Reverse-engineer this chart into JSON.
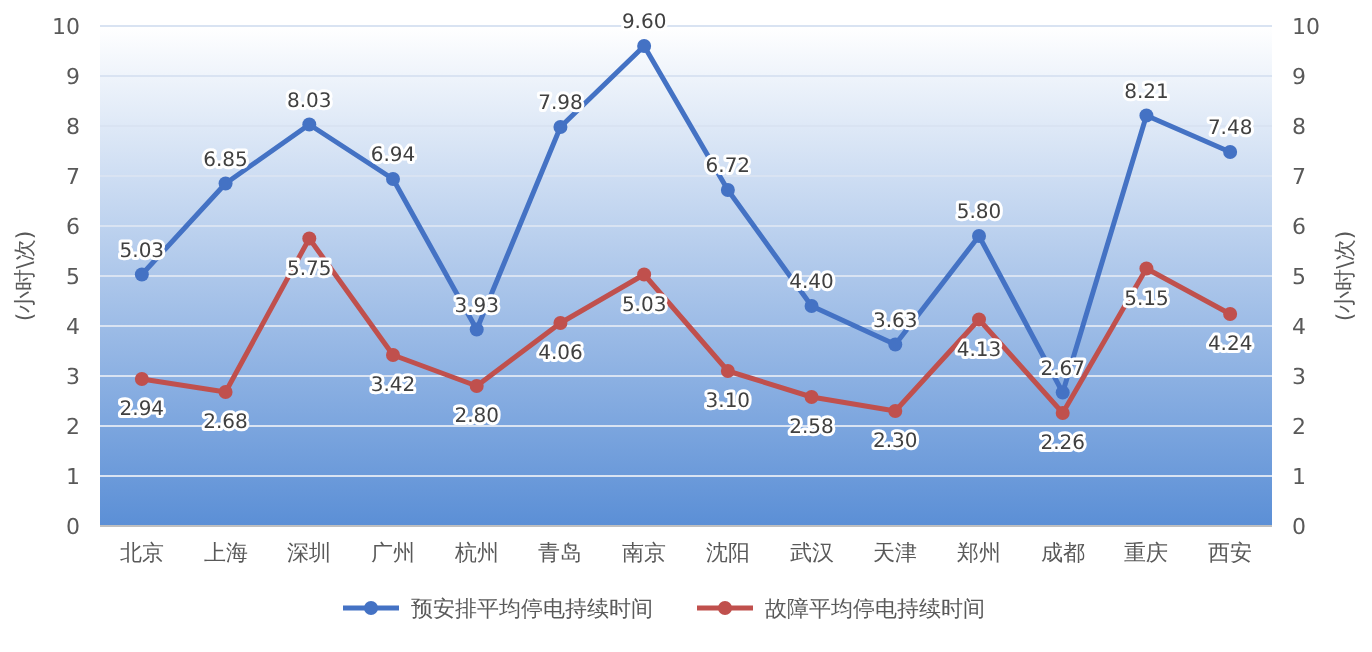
{
  "chart_data": {
    "type": "line",
    "categories": [
      "北京",
      "上海",
      "深圳",
      "广州",
      "杭州",
      "青岛",
      "南京",
      "沈阳",
      "武汉",
      "天津",
      "郑州",
      "成都",
      "重庆",
      "西安"
    ],
    "series": [
      {
        "name": "预安排平均停电持续时间",
        "color": "#4472c4",
        "values": [
          5.03,
          6.85,
          8.03,
          6.94,
          3.93,
          7.98,
          9.6,
          6.72,
          4.4,
          3.63,
          5.8,
          2.67,
          8.21,
          7.48
        ]
      },
      {
        "name": "故障平均停电持续时间",
        "color": "#c0504d",
        "values": [
          2.94,
          2.68,
          5.75,
          3.42,
          2.8,
          4.06,
          5.03,
          3.1,
          2.58,
          2.3,
          4.13,
          2.26,
          5.15,
          4.24
        ]
      }
    ],
    "value_labels": [
      [
        "5.03",
        "6.85",
        "8.03",
        "6.94",
        "3.93",
        "7.98",
        "9.60",
        "6.72",
        "4.40",
        "3.63",
        "5.80",
        "2.67",
        "8.21",
        "7.48"
      ],
      [
        "2.94",
        "2.68",
        "5.75",
        "3.42",
        "2.80",
        "4.06",
        "5.03",
        "3.10",
        "2.58",
        "2.30",
        "4.13",
        "2.26",
        "5.15",
        "4.24"
      ]
    ],
    "ylabel": "(小时\\次)",
    "y2label": "(小时\\次)",
    "ylim": [
      0,
      10
    ],
    "yticks": [
      0,
      1,
      2,
      3,
      4,
      5,
      6,
      7,
      8,
      9,
      10
    ],
    "y2lim": [
      0,
      10
    ],
    "y2ticks": [
      0,
      1,
      2,
      3,
      4,
      5,
      6,
      7,
      8,
      9,
      10
    ],
    "grid": "y",
    "legend": "bottom",
    "marker": "circle",
    "line_style": "solid"
  }
}
